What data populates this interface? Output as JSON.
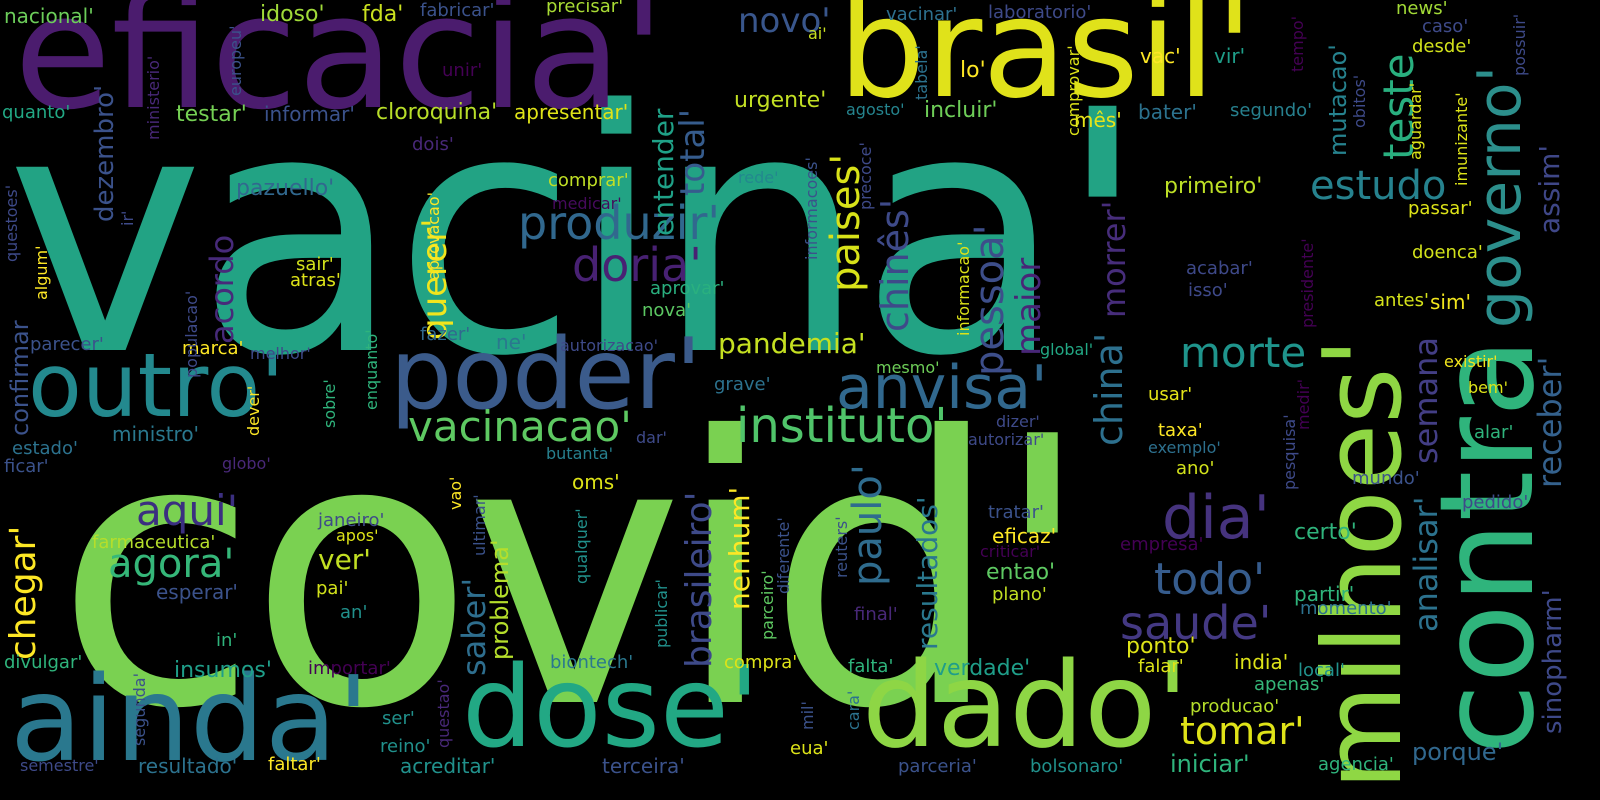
{
  "background": "#000000",
  "palette": [
    "#440154",
    "#3b528b",
    "#21918c",
    "#5ec962",
    "#fde725"
  ],
  "words": [
    {
      "text": "vacina'",
      "color": "#22a384"
    },
    {
      "text": "covid'",
      "color": "#7ad151"
    },
    {
      "text": "eficacia'",
      "color": "#4b1c6e"
    },
    {
      "text": "brasil'",
      "color": "#e0e21a"
    },
    {
      "text": "milhoes'",
      "color": "#8fd744"
    },
    {
      "text": "contra",
      "color": "#2fb47c"
    },
    {
      "text": "ainda'",
      "color": "#2a788e"
    },
    {
      "text": "dose'",
      "color": "#22a884"
    },
    {
      "text": "dado'",
      "color": "#8ed645"
    },
    {
      "text": "poder'",
      "color": "#3b5b8b"
    },
    {
      "text": "outro'",
      "color": "#23898e"
    },
    {
      "text": "governo'",
      "color": "#2c8f8c"
    },
    {
      "text": "anvisa'",
      "color": "#31688e"
    },
    {
      "text": "instituto'",
      "color": "#50c46a"
    },
    {
      "text": "vacinacao'",
      "color": "#5ec962"
    },
    {
      "text": "produzir'",
      "color": "#31688e"
    },
    {
      "text": "doria'",
      "color": "#482173"
    },
    {
      "text": "morte",
      "color": "#1f948c"
    },
    {
      "text": "dia'",
      "color": "#46337e"
    },
    {
      "text": "todo'",
      "color": "#365c8d"
    },
    {
      "text": "saude'",
      "color": "#443983"
    },
    {
      "text": "tomar'",
      "color": "#dfe318"
    },
    {
      "text": "agora'",
      "color": "#35b779"
    },
    {
      "text": "aqui'",
      "color": "#3b2f80"
    },
    {
      "text": "estudo",
      "color": "#26828e"
    },
    {
      "text": "teste",
      "color": "#29af7f"
    },
    {
      "text": "pandemia'",
      "color": "#c5e021"
    },
    {
      "text": "brasileiro'",
      "color": "#3e4a89"
    },
    {
      "text": "paulo'",
      "color": "#2f6c8e"
    },
    {
      "text": "chegar'",
      "color": "#fde725"
    },
    {
      "text": "querer'",
      "color": "#f1e51d"
    },
    {
      "text": "paises'",
      "color": "#d8e219"
    },
    {
      "text": "chinês'",
      "color": "#3e4a89"
    },
    {
      "text": "pessoa'",
      "color": "#3d4e8a"
    },
    {
      "text": "maior",
      "color": "#482677"
    },
    {
      "text": "china'",
      "color": "#2d708e"
    },
    {
      "text": "morrer'",
      "color": "#472d7b"
    },
    {
      "text": "semana",
      "color": "#433e85"
    },
    {
      "text": "receber'",
      "color": "#34618d"
    },
    {
      "text": "analisar'",
      "color": "#2c728e"
    },
    {
      "text": "sinopharm'",
      "color": "#3e4989"
    },
    {
      "text": "assim'",
      "color": "#3f4788"
    },
    {
      "text": "total'",
      "color": "#365c8d"
    },
    {
      "text": "entender",
      "color": "#1fa187"
    },
    {
      "text": "acordo",
      "color": "#472a7a"
    },
    {
      "text": "dezembro'",
      "color": "#3b528b"
    },
    {
      "text": "resultados'",
      "color": "#2a788e"
    },
    {
      "text": "saber'",
      "color": "#2e6e8e"
    },
    {
      "text": "problema'",
      "color": "#b5de2b"
    },
    {
      "text": "nenhum'",
      "color": "#fde725"
    },
    {
      "text": "confirmar",
      "color": "#3b528b"
    },
    {
      "text": "mutacao'",
      "color": "#26828e"
    },
    {
      "text": "novo'",
      "color": "#39568c"
    },
    {
      "text": "fazer'",
      "color": "#31688e"
    },
    {
      "text": "precisar'",
      "color": "#a8db34"
    },
    {
      "text": "fda'",
      "color": "#cae11f"
    },
    {
      "text": "idoso'",
      "color": "#a0da39"
    },
    {
      "text": "nacional'",
      "color": "#6ccd5a"
    },
    {
      "text": "fabricar'",
      "color": "#3b528b"
    },
    {
      "text": "vacinar'",
      "color": "#2d708e"
    },
    {
      "text": "laboratorio'",
      "color": "#3e4a89"
    },
    {
      "text": "news'",
      "color": "#a2da37"
    },
    {
      "text": "caso'",
      "color": "#3e4a89"
    },
    {
      "text": "testar'",
      "color": "#75d054"
    },
    {
      "text": "informar'",
      "color": "#3b528b"
    },
    {
      "text": "cloroquina'",
      "color": "#b8de29"
    },
    {
      "text": "apresentar'",
      "color": "#dfe318"
    },
    {
      "text": "urgente'",
      "color": "#c2df23"
    },
    {
      "text": "incluir'",
      "color": "#6ece58"
    },
    {
      "text": "lo'",
      "color": "#fde725"
    },
    {
      "text": "vac'",
      "color": "#fde725"
    },
    {
      "text": "vir'",
      "color": "#1f9e89"
    },
    {
      "text": "unir'",
      "color": "#440154"
    },
    {
      "text": "ai'",
      "color": "#c8e020"
    },
    {
      "text": "desde'",
      "color": "#d2e21b"
    },
    {
      "text": "quanto'",
      "color": "#22a884"
    },
    {
      "text": "bater'",
      "color": "#2c728e"
    },
    {
      "text": "segundo'",
      "color": "#27808e"
    },
    {
      "text": "mês'",
      "color": "#e7e419"
    },
    {
      "text": "agosto'",
      "color": "#25848e"
    },
    {
      "text": "primeiro'",
      "color": "#bddf26"
    },
    {
      "text": "pazuello'",
      "color": "#31688e"
    },
    {
      "text": "comprar'",
      "color": "#c0df25"
    },
    {
      "text": "dois'",
      "color": "#482878"
    },
    {
      "text": "rede'",
      "color": "#23888e"
    },
    {
      "text": "medicar'",
      "color": "#460a5d"
    },
    {
      "text": "sair'",
      "color": "#d2e21b"
    },
    {
      "text": "atras'",
      "color": "#dde318"
    },
    {
      "text": "aprovacao'",
      "color": "#fde725"
    },
    {
      "text": "aprovar'",
      "color": "#2ab07f"
    },
    {
      "text": "nova'",
      "color": "#5cc863"
    },
    {
      "text": "passar'",
      "color": "#dde318"
    },
    {
      "text": "doenca'",
      "color": "#d2e21b"
    },
    {
      "text": "acabar'",
      "color": "#3e4989"
    },
    {
      "text": "isso'",
      "color": "#3e4989"
    },
    {
      "text": "antes'",
      "color": "#d5e21a"
    },
    {
      "text": "sim'",
      "color": "#f1e51d"
    },
    {
      "text": "algum'",
      "color": "#fde725"
    },
    {
      "text": "parecer'",
      "color": "#3b528b"
    },
    {
      "text": "marca'",
      "color": "#fde725"
    },
    {
      "text": "melhor'",
      "color": "#3e4a89"
    },
    {
      "text": "ne'",
      "color": "#2a788e"
    },
    {
      "text": "autorizacao'",
      "color": "#3e4a89"
    },
    {
      "text": "global'",
      "color": "#22a884"
    },
    {
      "text": "mesmo'",
      "color": "#6ece58"
    },
    {
      "text": "existir'",
      "color": "#f1e51d"
    },
    {
      "text": "bem'",
      "color": "#dde318"
    },
    {
      "text": "usar'",
      "color": "#e5e419"
    },
    {
      "text": "ministro'",
      "color": "#2a788e"
    },
    {
      "text": "estado'",
      "color": "#2c728e"
    },
    {
      "text": "ficar'",
      "color": "#3b528b"
    },
    {
      "text": "globo'",
      "color": "#482878"
    },
    {
      "text": "dever'",
      "color": "#fde725"
    },
    {
      "text": "grave'",
      "color": "#2c728e"
    },
    {
      "text": "dar'",
      "color": "#3e4a89"
    },
    {
      "text": "butanta'",
      "color": "#27808e"
    },
    {
      "text": "oms'",
      "color": "#dde318"
    },
    {
      "text": "dizer'",
      "color": "#3e4a89"
    },
    {
      "text": "autorizar'",
      "color": "#3e4a89"
    },
    {
      "text": "taxa'",
      "color": "#fde725"
    },
    {
      "text": "exemplo'",
      "color": "#2d708e"
    },
    {
      "text": "ano'",
      "color": "#d2e21b"
    },
    {
      "text": "alar'",
      "color": "#2fb47c"
    },
    {
      "text": "mundo'",
      "color": "#3b528b"
    },
    {
      "text": "pedido'",
      "color": "#3e4a89"
    },
    {
      "text": "janeiro'",
      "color": "#3e4a89"
    },
    {
      "text": "apos'",
      "color": "#dde318"
    },
    {
      "text": "farmaceutica'",
      "color": "#b5de2b"
    },
    {
      "text": "ver'",
      "color": "#c2df23"
    },
    {
      "text": "pai'",
      "color": "#d2e21b"
    },
    {
      "text": "esperar'",
      "color": "#3b528b"
    },
    {
      "text": "an'",
      "color": "#21918c"
    },
    {
      "text": "tratar'",
      "color": "#3b528b"
    },
    {
      "text": "eficaz'",
      "color": "#fde725"
    },
    {
      "text": "criticar'",
      "color": "#440154"
    },
    {
      "text": "entao'",
      "color": "#5ec962"
    },
    {
      "text": "plano'",
      "color": "#c2df23"
    },
    {
      "text": "certo'",
      "color": "#2fb47c"
    },
    {
      "text": "empresa'",
      "color": "#440154"
    },
    {
      "text": "partir'",
      "color": "#2fb47c"
    },
    {
      "text": "momento'",
      "color": "#2c728e"
    },
    {
      "text": "in'",
      "color": "#2fb47c"
    },
    {
      "text": "final'",
      "color": "#482878"
    },
    {
      "text": "divulgar'",
      "color": "#2fb47c"
    },
    {
      "text": "insumos'",
      "color": "#1f9e89"
    },
    {
      "text": "importar'",
      "color": "#440154"
    },
    {
      "text": "biontech'",
      "color": "#2a788e"
    },
    {
      "text": "compra'",
      "color": "#dde318"
    },
    {
      "text": "falta'",
      "color": "#2fb47c"
    },
    {
      "text": "verdade'",
      "color": "#1f9e89"
    },
    {
      "text": "ponto'",
      "color": "#dde318"
    },
    {
      "text": "falar'",
      "color": "#dde318"
    },
    {
      "text": "india'",
      "color": "#dde318"
    },
    {
      "text": "local'",
      "color": "#21918c"
    },
    {
      "text": "apenas'",
      "color": "#35b779"
    },
    {
      "text": "producao'",
      "color": "#b5de2b"
    },
    {
      "text": "ser'",
      "color": "#21918c"
    },
    {
      "text": "reino'",
      "color": "#21918c"
    },
    {
      "text": "semestre'",
      "color": "#3e4a89"
    },
    {
      "text": "resultado'",
      "color": "#2c728e"
    },
    {
      "text": "faltar'",
      "color": "#fde725"
    },
    {
      "text": "acreditar'",
      "color": "#21918c"
    },
    {
      "text": "terceira'",
      "color": "#3b528b"
    },
    {
      "text": "eua'",
      "color": "#dde318"
    },
    {
      "text": "parceria'",
      "color": "#3b528b"
    },
    {
      "text": "bolsonaro'",
      "color": "#21918c"
    },
    {
      "text": "iniciar'",
      "color": "#2fb47c"
    },
    {
      "text": "agencia'",
      "color": "#2fb47c"
    },
    {
      "text": "porque'",
      "color": "#31688e"
    },
    {
      "text": "europeu'",
      "color": "#3b528b"
    },
    {
      "text": "ministerio'",
      "color": "#482878"
    },
    {
      "text": "questoes'",
      "color": "#3e4a89"
    },
    {
      "text": "ir'",
      "color": "#3e4a89"
    },
    {
      "text": "populacao'",
      "color": "#3e4a89"
    },
    {
      "text": "enquanto'",
      "color": "#2fb47c"
    },
    {
      "text": "sobre'",
      "color": "#2fb47c"
    },
    {
      "text": "informacao'",
      "color": "#dde318"
    },
    {
      "text": "informacoes'",
      "color": "#3b528b"
    },
    {
      "text": "precoce'",
      "color": "#3e4a89"
    },
    {
      "text": "tabela'",
      "color": "#2c728e"
    },
    {
      "text": "comprovar'",
      "color": "#dde318"
    },
    {
      "text": "obitos'",
      "color": "#3e4a89"
    },
    {
      "text": "tempo'",
      "color": "#440154"
    },
    {
      "text": "imunizante'",
      "color": "#dde318"
    },
    {
      "text": "aguardar'",
      "color": "#dde318"
    },
    {
      "text": "possuir'",
      "color": "#3e4a89"
    },
    {
      "text": "presidente'",
      "color": "#440154"
    },
    {
      "text": "pesquisa'",
      "color": "#3e4a89"
    },
    {
      "text": "medir'",
      "color": "#440154"
    },
    {
      "text": "ultimar'",
      "color": "#3b528b"
    },
    {
      "text": "vao'",
      "color": "#fde725"
    },
    {
      "text": "qualquer'",
      "color": "#21918c"
    },
    {
      "text": "publicar'",
      "color": "#21918c"
    },
    {
      "text": "parceiro'",
      "color": "#5ec962"
    },
    {
      "text": "diferente'",
      "color": "#3b528b"
    },
    {
      "text": "reuters'",
      "color": "#3b528b"
    },
    {
      "text": "cara'",
      "color": "#2c728e"
    },
    {
      "text": "mil'",
      "color": "#3b528b"
    },
    {
      "text": "questao'",
      "color": "#482878"
    },
    {
      "text": "segunda'",
      "color": "#3b528b"
    }
  ]
}
